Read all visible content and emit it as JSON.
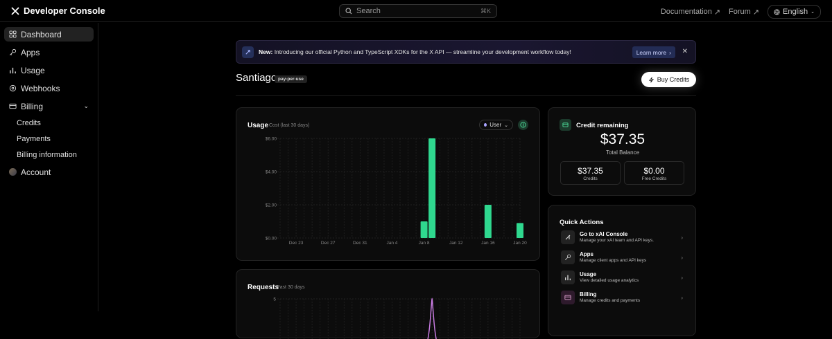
{
  "header": {
    "app_title": "Developer Console",
    "search_placeholder": "Search",
    "search_shortcut": "⌘K",
    "links": [
      {
        "label": "Documentation"
      },
      {
        "label": "Forum"
      }
    ],
    "language": "English"
  },
  "sidebar": {
    "items": [
      {
        "label": "Dashboard",
        "icon": "grid-icon",
        "active": true
      },
      {
        "label": "Apps",
        "icon": "key-icon"
      },
      {
        "label": "Usage",
        "icon": "bar-chart-icon"
      },
      {
        "label": "Webhooks",
        "icon": "webhook-icon"
      },
      {
        "label": "Billing",
        "icon": "card-icon",
        "expanded": true
      }
    ],
    "billing_sub": [
      "Credits",
      "Payments",
      "Billing information"
    ],
    "account_label": "Account"
  },
  "banner": {
    "prefix": "New:",
    "text": "Introducing our official Python and TypeScript XDKs for the X API — streamline your development workflow today!",
    "button": "Learn more"
  },
  "page": {
    "title": "Santiago",
    "plan_badge": "pay-per-use",
    "buy_button": "Buy Credits"
  },
  "usage": {
    "title": "Usage",
    "subtitle": "Cost (last 30 days)",
    "filter": "User"
  },
  "requests": {
    "title": "Requests",
    "subtitle": "Past 30 days",
    "ytick_top": "5"
  },
  "chart_data": {
    "type": "bar",
    "title": "Usage",
    "subtitle": "Cost (last 30 days)",
    "y_ticks": [
      "$0.00",
      "$2.00",
      "$4.00",
      "$6.00"
    ],
    "ylim": [
      0,
      6
    ],
    "x_tick_labels": [
      "Dec 23",
      "Dec 27",
      "Dec 31",
      "Jan 4",
      "Jan 8",
      "Jan 12",
      "Jan 16",
      "Jan 20"
    ],
    "num_days": 31,
    "first_tick_index": 2,
    "tick_every": 4,
    "bars": [
      {
        "day_index": 18,
        "value": 1.0
      },
      {
        "day_index": 19,
        "value": 6.0
      },
      {
        "day_index": 26,
        "value": 2.0
      },
      {
        "day_index": 30,
        "value": 0.9
      }
    ],
    "bar_color": "#2fd88f",
    "grid": true
  },
  "credits": {
    "title": "Credit remaining",
    "total": "$37.35",
    "total_label": "Total Balance",
    "paid_value": "$37.35",
    "paid_label": "Credits",
    "free_value": "$0.00",
    "free_label": "Free Credits"
  },
  "quick_actions": {
    "title": "Quick Actions",
    "items": [
      {
        "name": "Go to xAI Console",
        "desc": "Manage your xAI team and API keys."
      },
      {
        "name": "Apps",
        "desc": "Manage client apps and API keys"
      },
      {
        "name": "Usage",
        "desc": "View detailed usage analytics"
      },
      {
        "name": "Billing",
        "desc": "Manage credits and payments"
      }
    ]
  }
}
